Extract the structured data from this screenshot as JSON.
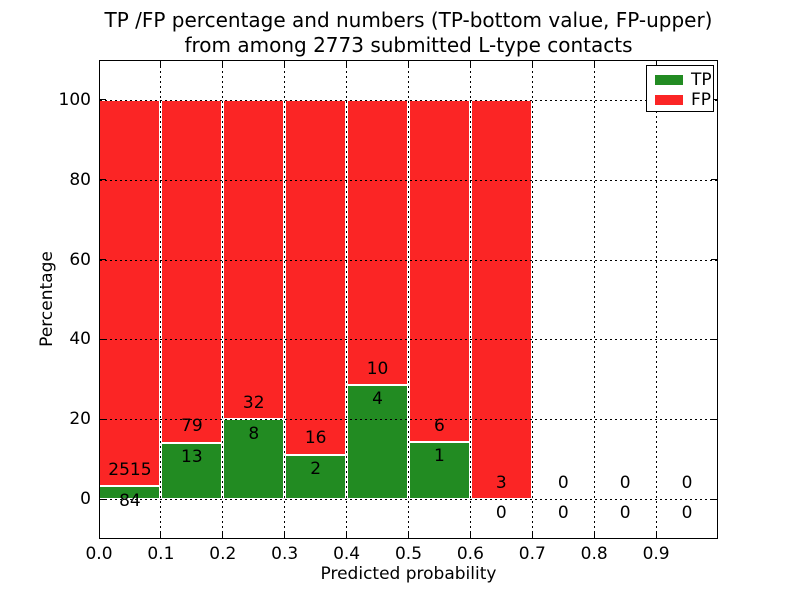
{
  "figure": {
    "title_lines": [
      "TP /FP percentage and numbers (TP-bottom value, FP-upper)",
      "from among 2773 submitted L-type contacts"
    ]
  },
  "chart_data": {
    "type": "bar",
    "subtype": "stacked-percentage",
    "title": "TP /FP percentage and numbers (TP-bottom value, FP-upper) from among 2773 submitted L-type contacts",
    "total_contacts": 2773,
    "xlabel": "Predicted probability",
    "ylabel": "Percentage",
    "xlim": [
      0.0,
      1.0
    ],
    "ylim": [
      -10,
      110
    ],
    "bin_width": 0.1,
    "grid": "dotted",
    "categories": [
      "0.0-0.1",
      "0.1-0.2",
      "0.2-0.3",
      "0.3-0.4",
      "0.4-0.5",
      "0.5-0.6",
      "0.6-0.7",
      "0.7-0.8",
      "0.8-0.9",
      "0.9-1.0"
    ],
    "series": [
      {
        "name": "TP",
        "values": [
          84,
          13,
          8,
          2,
          4,
          1,
          0,
          0,
          0,
          0
        ]
      },
      {
        "name": "FP",
        "values": [
          2515,
          79,
          32,
          16,
          10,
          6,
          3,
          0,
          0,
          0
        ]
      }
    ],
    "tp_percent": [
      3.2,
      14.1,
      20.0,
      11.1,
      28.6,
      14.3,
      0.0,
      null,
      null,
      null
    ],
    "xticks": [
      {
        "value": 0.0,
        "label": "0.0"
      },
      {
        "value": 0.1,
        "label": "0.1"
      },
      {
        "value": 0.2,
        "label": "0.2"
      },
      {
        "value": 0.3,
        "label": "0.3"
      },
      {
        "value": 0.4,
        "label": "0.4"
      },
      {
        "value": 0.5,
        "label": "0.5"
      },
      {
        "value": 0.6,
        "label": "0.6"
      },
      {
        "value": 0.7,
        "label": "0.7"
      },
      {
        "value": 0.8,
        "label": "0.8"
      },
      {
        "value": 0.9,
        "label": "0.9"
      }
    ],
    "yticks": [
      {
        "value": 0,
        "label": "0"
      },
      {
        "value": 20,
        "label": "20"
      },
      {
        "value": 40,
        "label": "40"
      },
      {
        "value": 60,
        "label": "60"
      },
      {
        "value": 80,
        "label": "80"
      },
      {
        "value": 100,
        "label": "100"
      }
    ],
    "legend": {
      "position": "upper-right",
      "entries": [
        {
          "label": "TP",
          "color": "#228B22"
        },
        {
          "label": "FP",
          "color": "#FB2525"
        }
      ]
    },
    "colors": {
      "tp": "#228B22",
      "fp": "#FB2525",
      "grid": "#000000",
      "background": "#ffffff",
      "text": "#000000"
    }
  }
}
